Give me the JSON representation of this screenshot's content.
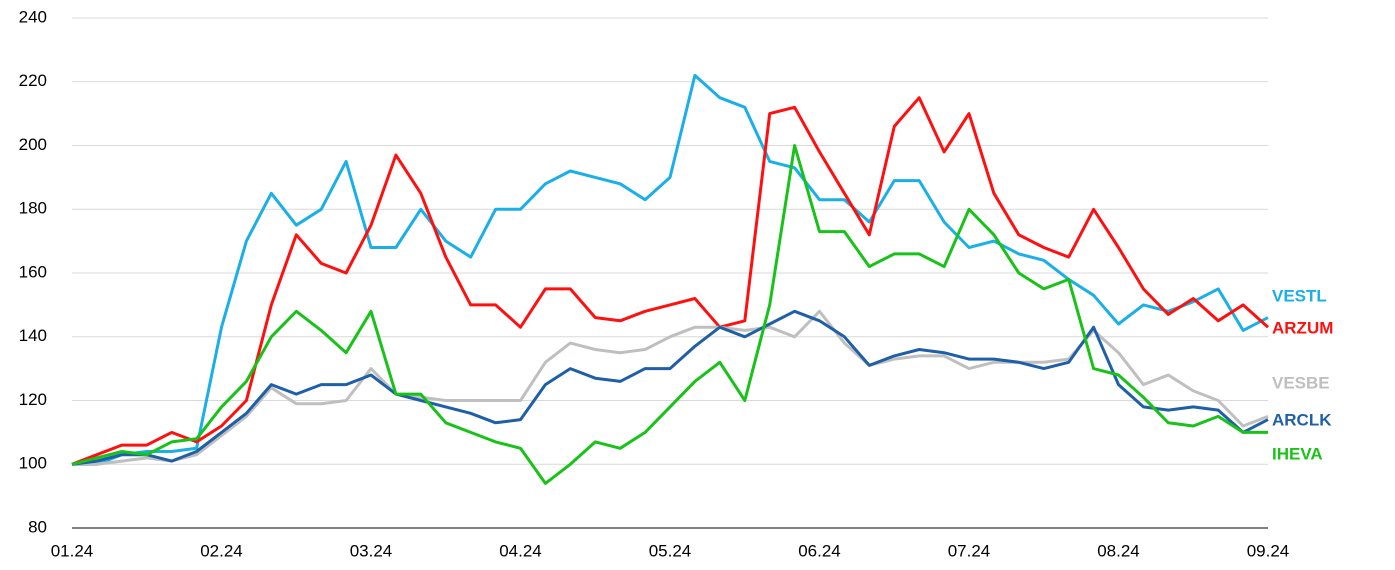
{
  "chart_data": {
    "type": "line",
    "categories": [
      "01.24",
      null,
      null,
      null,
      null,
      null,
      "02.24",
      null,
      null,
      null,
      null,
      null,
      "03.24",
      null,
      null,
      null,
      null,
      null,
      "04.24",
      null,
      null,
      null,
      null,
      null,
      "05.24",
      null,
      null,
      null,
      null,
      null,
      "06.24",
      null,
      null,
      null,
      null,
      null,
      "07.24",
      null,
      null,
      null,
      null,
      null,
      "08.24",
      null,
      null,
      null,
      null,
      null,
      "09.24"
    ],
    "ylim": [
      80,
      240
    ],
    "yticks": [
      80,
      100,
      120,
      140,
      160,
      180,
      200,
      220,
      240
    ],
    "grid": true,
    "series": [
      {
        "name": "VESTL",
        "color": "#1AAFE6",
        "values": [
          100,
          100,
          103,
          104,
          104,
          105,
          143,
          170,
          185,
          175,
          180,
          195,
          168,
          168,
          180,
          170,
          165,
          180,
          180,
          188,
          192,
          190,
          188,
          183,
          190,
          222,
          215,
          212,
          195,
          193,
          183,
          183,
          176,
          189,
          189,
          176,
          168,
          170,
          166,
          164,
          158,
          153,
          144,
          150,
          148,
          151,
          155,
          142,
          146
        ]
      },
      {
        "name": "ARZUM",
        "color": "#FF1010",
        "values": [
          100,
          103,
          106,
          106,
          110,
          107,
          112,
          120,
          150,
          172,
          163,
          160,
          175,
          197,
          185,
          165,
          150,
          150,
          143,
          155,
          155,
          146,
          145,
          148,
          150,
          152,
          143,
          145,
          210,
          212,
          198,
          185,
          172,
          206,
          215,
          198,
          210,
          185,
          172,
          168,
          165,
          180,
          168,
          155,
          147,
          152,
          145,
          150,
          143
        ]
      },
      {
        "name": "VESBE",
        "color": "#BFBFBF",
        "values": [
          100,
          100,
          101,
          102,
          101,
          103,
          109,
          115,
          124,
          119,
          119,
          120,
          130,
          122,
          121,
          120,
          120,
          120,
          120,
          132,
          138,
          136,
          135,
          136,
          140,
          143,
          143,
          142,
          143,
          140,
          148,
          138,
          131,
          133,
          134,
          134,
          130,
          132,
          132,
          132,
          133,
          142,
          135,
          125,
          128,
          123,
          120,
          112,
          115
        ]
      },
      {
        "name": "ARCLK",
        "color": "#1F5FA8",
        "values": [
          100,
          101,
          103,
          103,
          101,
          104,
          110,
          116,
          125,
          122,
          125,
          125,
          128,
          122,
          120,
          118,
          116,
          113,
          114,
          125,
          130,
          127,
          126,
          130,
          130,
          137,
          143,
          140,
          144,
          148,
          145,
          140,
          131,
          134,
          136,
          135,
          133,
          133,
          132,
          130,
          132,
          143,
          125,
          118,
          117,
          118,
          117,
          110,
          114
        ]
      },
      {
        "name": "IHEVA",
        "color": "#19C219",
        "values": [
          100,
          102,
          104,
          103,
          107,
          108,
          118,
          126,
          140,
          148,
          142,
          135,
          148,
          122,
          122,
          113,
          110,
          107,
          105,
          94,
          100,
          107,
          105,
          110,
          118,
          126,
          132,
          120,
          150,
          200,
          173,
          173,
          162,
          166,
          166,
          162,
          180,
          172,
          160,
          155,
          158,
          130,
          128,
          121,
          113,
          112,
          115,
          110,
          110
        ]
      }
    ]
  }
}
